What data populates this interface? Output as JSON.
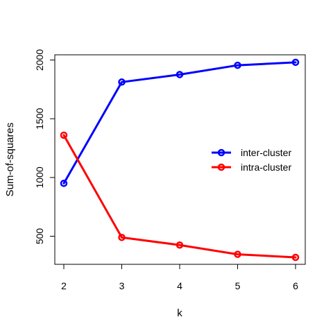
{
  "chart_data": {
    "type": "line",
    "title": "",
    "xlabel": "k",
    "ylabel": "Sum-of-squares",
    "x": [
      2,
      3,
      4,
      5,
      6
    ],
    "x_ticks": [
      2,
      3,
      4,
      5,
      6
    ],
    "y_ticks": [
      500,
      1000,
      1500,
      2000
    ],
    "xlim": [
      2,
      6
    ],
    "ylim": [
      320,
      1985
    ],
    "grid": false,
    "legend_position": "right",
    "series": [
      {
        "name": "inter-cluster",
        "color": "#0000ff",
        "values": [
          950,
          1812,
          1876,
          1955,
          1980
        ]
      },
      {
        "name": "intra-cluster",
        "color": "#ff0000",
        "values": [
          1360,
          490,
          425,
          346,
          320
        ]
      }
    ]
  }
}
